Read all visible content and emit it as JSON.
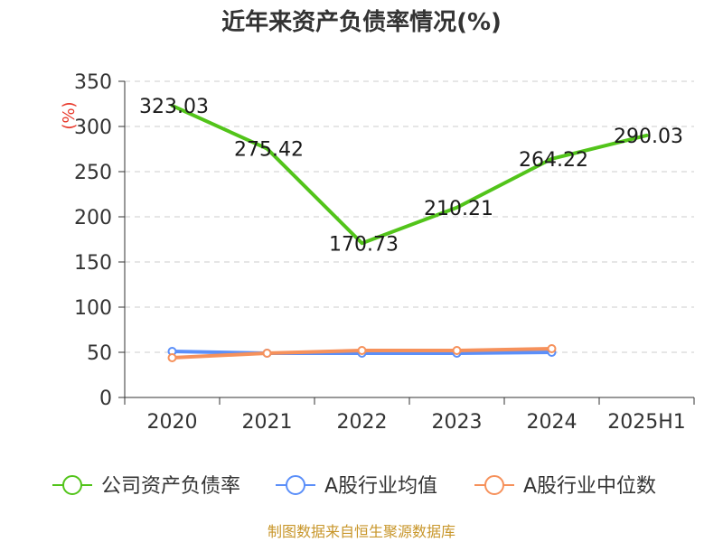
{
  "chart_data": {
    "type": "line",
    "title": "近年来资产负债率情况(%)",
    "unit_label": "(%)",
    "categories": [
      "2020",
      "2021",
      "2022",
      "2023",
      "2024",
      "2025H1"
    ],
    "yticks": [
      "0",
      "50",
      "100",
      "150",
      "200",
      "250",
      "300",
      "350"
    ],
    "ylim": [
      0,
      350
    ],
    "grid": true,
    "legend_position": "bottom",
    "series": [
      {
        "name": "公司资产负债率",
        "color": "#52c41a",
        "values": [
          323.03,
          275.42,
          170.73,
          210.21,
          264.22,
          290.03
        ],
        "labels": [
          "323.03",
          "275.42",
          "170.73",
          "210.21",
          "264.22",
          "290.03"
        ],
        "show_markers": false
      },
      {
        "name": "A股行业均值",
        "color": "#5b8ff9",
        "values": [
          51,
          49,
          49,
          49,
          50,
          null
        ],
        "show_markers": true
      },
      {
        "name": "A股行业中位数",
        "color": "#f6915b",
        "values": [
          44,
          49,
          52,
          52,
          54,
          null
        ],
        "show_markers": true
      }
    ]
  },
  "source_text": "制图数据来自恒生聚源数据库",
  "colors": {
    "title": "#333333",
    "axis": "#333333",
    "grid": "#cccccc",
    "unit": "#e8392b",
    "source": "#c8962a"
  }
}
